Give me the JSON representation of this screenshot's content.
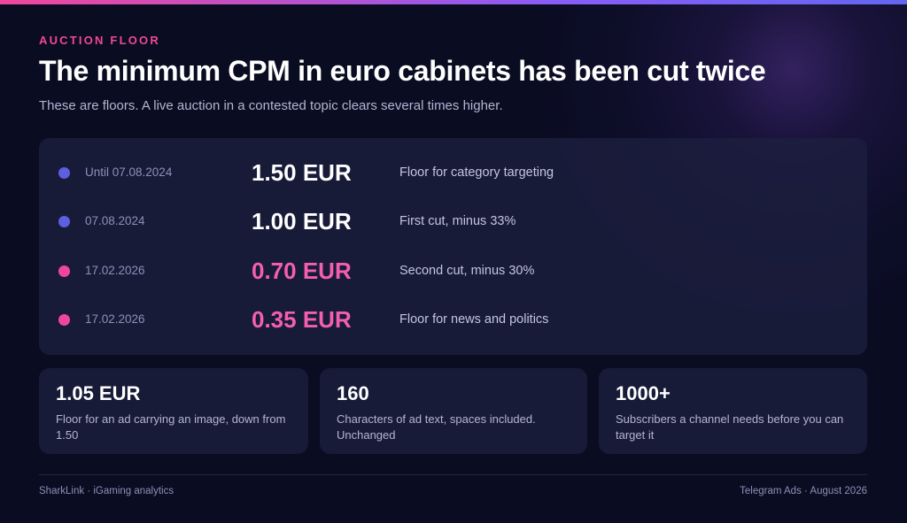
{
  "eyebrow": "AUCTION FLOOR",
  "title": "The minimum CPM in euro cabinets has been cut twice",
  "subtitle": "These are floors. A live auction in a contested topic clears several times higher.",
  "rows": [
    {
      "date": "Until 07.08.2024",
      "price": "1.50 EUR",
      "note": "Floor for category targeting",
      "dot_color": "#5b5fe0",
      "price_color": "#ffffff"
    },
    {
      "date": "07.08.2024",
      "price": "1.00 EUR",
      "note": "First cut, minus 33%",
      "dot_color": "#5b5fe0",
      "price_color": "#ffffff"
    },
    {
      "date": "17.02.2026",
      "price": "0.70 EUR",
      "note": "Second cut, minus 30%",
      "dot_color": "#f0479b",
      "price_color": "#f35fae"
    },
    {
      "date": "17.02.2026",
      "price": "0.35 EUR",
      "note": "Floor for news and politics",
      "dot_color": "#f0479b",
      "price_color": "#f35fae"
    }
  ],
  "stats": [
    {
      "value": "1.05 EUR",
      "label": "Floor for an ad carrying an image, down from 1.50"
    },
    {
      "value": "160",
      "label": "Characters of ad text, spaces included. Unchanged"
    },
    {
      "value": "1000+",
      "label": "Subscribers a channel needs before you can target it"
    }
  ],
  "footer": {
    "left": "SharkLink · iGaming analytics",
    "right": "Telegram Ads · August 2026"
  }
}
